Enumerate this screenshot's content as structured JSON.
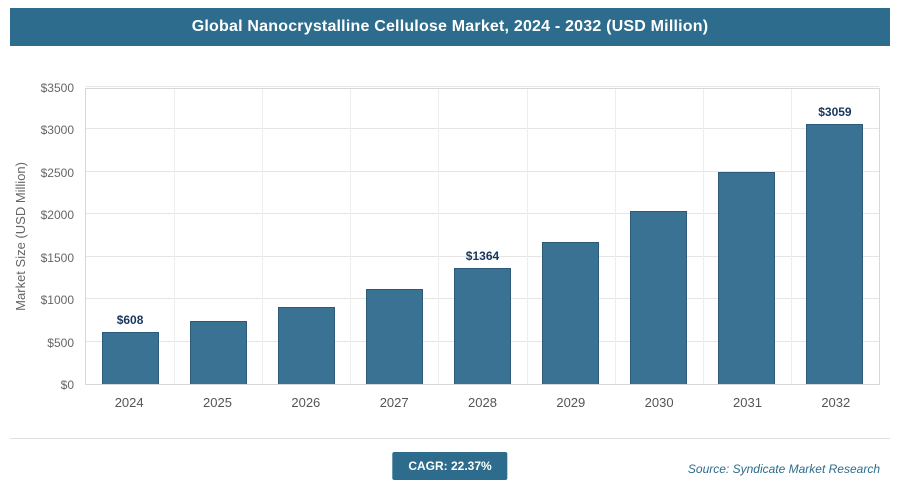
{
  "header": {
    "title": "Global Nanocrystalline Cellulose Market, 2024 - 2032 (USD Million)"
  },
  "chart_data": {
    "type": "bar",
    "title": "Global Nanocrystalline Cellulose Market, 2024 - 2032 (USD Million)",
    "categories": [
      "2024",
      "2025",
      "2026",
      "2027",
      "2028",
      "2029",
      "2030",
      "2031",
      "2032"
    ],
    "values": [
      608,
      744,
      910,
      1114,
      1364,
      1669,
      2042,
      2499,
      3059
    ],
    "data_labels": [
      "$608",
      "",
      "",
      "",
      "$1364",
      "",
      "",
      "",
      "$3059"
    ],
    "xlabel": "",
    "ylabel": "Market Size (USD Million)",
    "ylim": [
      0,
      3500
    ],
    "ytick_step": 500,
    "ytick_prefix": "$",
    "grid": true,
    "legend": false
  },
  "footer": {
    "cagr_label": "CAGR: 22.37%",
    "source": "Source: Syndicate Market Research"
  },
  "colors": {
    "header_bg": "#2d6c8c",
    "bar_fill": "#3a7293",
    "bar_border": "#2c5a77",
    "label_text": "#17375e",
    "accent": "#2d6c8c"
  }
}
